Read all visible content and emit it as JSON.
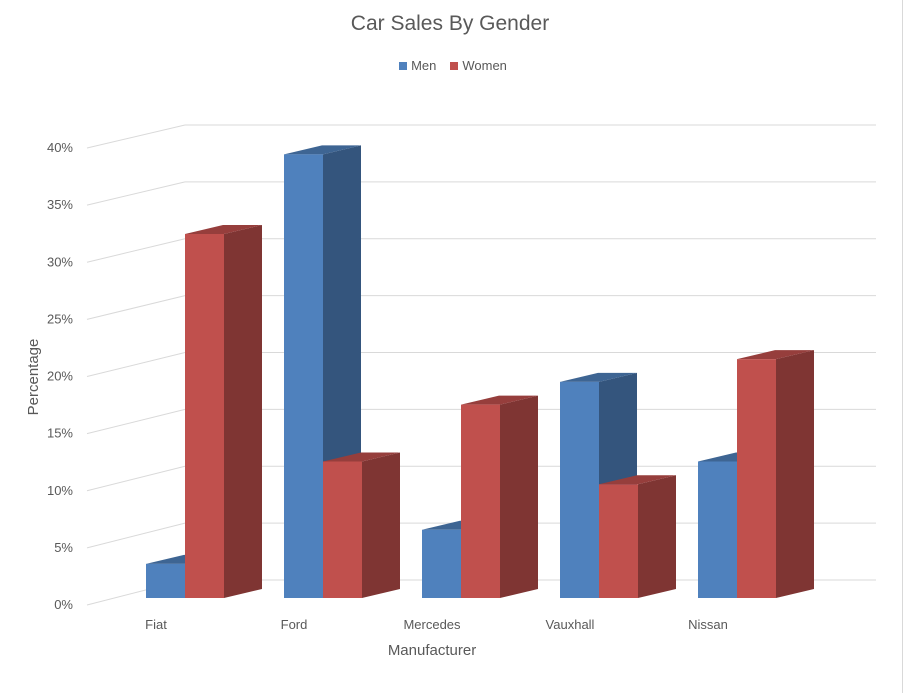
{
  "chart_data": {
    "type": "bar",
    "title": "Car Sales By Gender",
    "xlabel": "Manufacturer",
    "ylabel": "Percentage",
    "categories": [
      "Fiat",
      "Ford",
      "Mercedes",
      "Vauxhall",
      "Nissan"
    ],
    "series": [
      {
        "name": "Men",
        "color": "#4f81bd",
        "values": [
          3,
          39,
          6,
          19,
          12
        ]
      },
      {
        "name": "Women",
        "color": "#c0504d",
        "values": [
          32,
          12,
          17,
          10,
          21
        ]
      }
    ],
    "ylim": [
      0,
      40
    ],
    "yticks": [
      "0%",
      "5%",
      "10%",
      "15%",
      "20%",
      "25%",
      "30%",
      "35%",
      "40%"
    ],
    "grid": true,
    "legend": "top"
  }
}
